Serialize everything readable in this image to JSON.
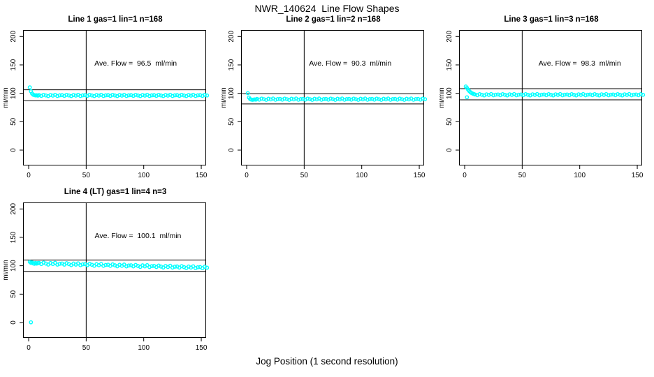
{
  "figure": {
    "title": "NWR_140624  Line Flow Shapes",
    "xlabel": "Jog Position (1 second resolution)",
    "point_color": "#00FFFF",
    "axis_color": "#000000",
    "background_color": "#FFFFFF"
  },
  "chart_data": [
    {
      "type": "scatter",
      "title": "Line 1 gas=1 lin=1 n=168",
      "ylabel": "ml/min",
      "annotation": "Ave. Flow =  96.5  ml/min",
      "avg_flow_ml_min": 96.5,
      "n": 168,
      "xticks": [
        0,
        50,
        100,
        150
      ],
      "yticks": [
        0,
        50,
        100,
        150,
        200
      ],
      "xlim": [
        -5,
        155
      ],
      "ylim": [
        -27,
        212
      ],
      "vline_x": 50,
      "hlines": [
        106.2,
        86.9
      ],
      "annotation_anchor": [
        93,
        149
      ],
      "points": [
        [
          1,
          110.5
        ],
        [
          2,
          103.5
        ],
        [
          3,
          99.5
        ],
        [
          4,
          97.5
        ],
        [
          5,
          96.8
        ],
        [
          6,
          96.3
        ],
        [
          7,
          96.6
        ],
        [
          8,
          95.9
        ],
        [
          9,
          96.7
        ],
        [
          11,
          95.5
        ],
        [
          13,
          97.3
        ],
        [
          15,
          96.2
        ],
        [
          17,
          95.1
        ],
        [
          19,
          97.0
        ],
        [
          21,
          95.9
        ],
        [
          23,
          97.4
        ],
        [
          25,
          95.3
        ],
        [
          27,
          96.4
        ],
        [
          29,
          96.7
        ],
        [
          31,
          95.5
        ],
        [
          33,
          97.3
        ],
        [
          35,
          96.2
        ],
        [
          37,
          95.1
        ],
        [
          39,
          97.0
        ],
        [
          41,
          95.9
        ],
        [
          43,
          97.4
        ],
        [
          45,
          95.3
        ],
        [
          47,
          96.4
        ],
        [
          49,
          96.7
        ],
        [
          51,
          95.5
        ],
        [
          53,
          97.3
        ],
        [
          55,
          96.2
        ],
        [
          57,
          95.1
        ],
        [
          59,
          97.0
        ],
        [
          61,
          95.9
        ],
        [
          63,
          97.4
        ],
        [
          65,
          95.3
        ],
        [
          67,
          96.4
        ],
        [
          69,
          96.7
        ],
        [
          71,
          95.5
        ],
        [
          73,
          97.3
        ],
        [
          75,
          96.2
        ],
        [
          77,
          95.1
        ],
        [
          79,
          97.0
        ],
        [
          81,
          95.9
        ],
        [
          83,
          97.4
        ],
        [
          85,
          95.3
        ],
        [
          87,
          96.4
        ],
        [
          89,
          96.7
        ],
        [
          91,
          95.5
        ],
        [
          93,
          97.3
        ],
        [
          95,
          96.2
        ],
        [
          97,
          95.1
        ],
        [
          99,
          97.0
        ],
        [
          101,
          95.9
        ],
        [
          103,
          97.4
        ],
        [
          105,
          95.3
        ],
        [
          107,
          96.4
        ],
        [
          109,
          96.7
        ],
        [
          111,
          95.5
        ],
        [
          113,
          97.3
        ],
        [
          115,
          96.2
        ],
        [
          117,
          95.1
        ],
        [
          119,
          97.0
        ],
        [
          121,
          95.9
        ],
        [
          123,
          97.4
        ],
        [
          125,
          95.3
        ],
        [
          127,
          96.4
        ],
        [
          129,
          96.7
        ],
        [
          131,
          95.5
        ],
        [
          133,
          97.3
        ],
        [
          135,
          96.2
        ],
        [
          137,
          95.1
        ],
        [
          139,
          97.0
        ],
        [
          141,
          95.9
        ],
        [
          143,
          97.4
        ],
        [
          145,
          95.3
        ],
        [
          147,
          96.4
        ],
        [
          149,
          96.7
        ],
        [
          151,
          95.5
        ],
        [
          153,
          97.3
        ],
        [
          155,
          96.2
        ]
      ]
    },
    {
      "type": "scatter",
      "title": "Line 2 gas=1 lin=2 n=168",
      "ylabel": "ml/min",
      "annotation": "Ave. Flow =  90.3  ml/min",
      "avg_flow_ml_min": 90.3,
      "n": 168,
      "xticks": [
        0,
        50,
        100,
        150
      ],
      "yticks": [
        0,
        50,
        100,
        150,
        200
      ],
      "xlim": [
        -5,
        155
      ],
      "ylim": [
        -27,
        212
      ],
      "vline_x": 50,
      "hlines": [
        99.3,
        81.3
      ],
      "annotation_anchor": [
        90,
        149
      ],
      "points": [
        [
          1,
          100.2
        ],
        [
          2,
          92.5
        ],
        [
          3,
          90.0
        ],
        [
          4,
          89.0
        ],
        [
          5,
          88.6
        ],
        [
          6,
          88.9
        ],
        [
          7,
          89.3
        ],
        [
          8,
          88.8
        ],
        [
          9,
          90.1
        ],
        [
          11,
          88.9
        ],
        [
          13,
          90.7
        ],
        [
          15,
          89.6
        ],
        [
          17,
          88.5
        ],
        [
          19,
          90.4
        ],
        [
          21,
          89.3
        ],
        [
          23,
          90.8
        ],
        [
          25,
          88.7
        ],
        [
          27,
          89.8
        ],
        [
          29,
          90.1
        ],
        [
          31,
          88.9
        ],
        [
          33,
          90.7
        ],
        [
          35,
          89.6
        ],
        [
          37,
          88.5
        ],
        [
          39,
          90.4
        ],
        [
          41,
          89.3
        ],
        [
          43,
          90.8
        ],
        [
          45,
          88.7
        ],
        [
          47,
          89.8
        ],
        [
          49,
          90.1
        ],
        [
          51,
          88.9
        ],
        [
          53,
          90.7
        ],
        [
          55,
          89.6
        ],
        [
          57,
          88.5
        ],
        [
          59,
          90.4
        ],
        [
          61,
          89.3
        ],
        [
          63,
          90.8
        ],
        [
          65,
          88.7
        ],
        [
          67,
          89.8
        ],
        [
          69,
          90.1
        ],
        [
          71,
          88.9
        ],
        [
          73,
          90.7
        ],
        [
          75,
          89.6
        ],
        [
          77,
          88.5
        ],
        [
          79,
          90.4
        ],
        [
          81,
          89.3
        ],
        [
          83,
          90.8
        ],
        [
          85,
          88.7
        ],
        [
          87,
          89.8
        ],
        [
          89,
          90.1
        ],
        [
          91,
          88.9
        ],
        [
          93,
          90.7
        ],
        [
          95,
          89.6
        ],
        [
          97,
          88.5
        ],
        [
          99,
          90.4
        ],
        [
          101,
          89.3
        ],
        [
          103,
          90.8
        ],
        [
          105,
          88.7
        ],
        [
          107,
          89.8
        ],
        [
          109,
          90.1
        ],
        [
          111,
          88.9
        ],
        [
          113,
          90.7
        ],
        [
          115,
          89.6
        ],
        [
          117,
          88.5
        ],
        [
          119,
          90.4
        ],
        [
          121,
          89.3
        ],
        [
          123,
          90.8
        ],
        [
          125,
          88.7
        ],
        [
          127,
          89.8
        ],
        [
          129,
          90.1
        ],
        [
          131,
          88.9
        ],
        [
          133,
          90.7
        ],
        [
          135,
          89.6
        ],
        [
          137,
          88.5
        ],
        [
          139,
          90.4
        ],
        [
          141,
          89.3
        ],
        [
          143,
          90.8
        ],
        [
          145,
          88.7
        ],
        [
          147,
          89.8
        ],
        [
          149,
          90.1
        ],
        [
          151,
          88.9
        ],
        [
          153,
          90.7
        ],
        [
          155,
          89.6
        ]
      ]
    },
    {
      "type": "scatter",
      "title": "Line 3 gas=1 lin=3 n=168",
      "ylabel": "ml/min",
      "annotation": "Ave. Flow =  98.3  ml/min",
      "avg_flow_ml_min": 98.3,
      "n": 168,
      "xticks": [
        0,
        50,
        100,
        150
      ],
      "yticks": [
        0,
        50,
        100,
        150,
        200
      ],
      "xlim": [
        -5,
        155
      ],
      "ylim": [
        -27,
        212
      ],
      "vline_x": 50,
      "hlines": [
        108.1,
        88.5
      ],
      "annotation_anchor": [
        100,
        149
      ],
      "points": [
        [
          1,
          112.0
        ],
        [
          2,
          109.5
        ],
        [
          2,
          93.0
        ],
        [
          3,
          106.5
        ],
        [
          4,
          104.0
        ],
        [
          5,
          102.0
        ],
        [
          6,
          100.5
        ],
        [
          7,
          99.5
        ],
        [
          8,
          98.7
        ],
        [
          9,
          97.9
        ],
        [
          11,
          96.7
        ],
        [
          13,
          98.5
        ],
        [
          15,
          97.4
        ],
        [
          17,
          96.3
        ],
        [
          19,
          98.2
        ],
        [
          21,
          97.1
        ],
        [
          23,
          98.6
        ],
        [
          25,
          96.5
        ],
        [
          27,
          97.6
        ],
        [
          29,
          97.9
        ],
        [
          31,
          96.7
        ],
        [
          33,
          98.5
        ],
        [
          35,
          97.4
        ],
        [
          37,
          96.3
        ],
        [
          39,
          98.2
        ],
        [
          41,
          97.1
        ],
        [
          43,
          98.6
        ],
        [
          45,
          96.5
        ],
        [
          47,
          97.6
        ],
        [
          49,
          97.9
        ],
        [
          51,
          96.7
        ],
        [
          53,
          98.5
        ],
        [
          55,
          97.4
        ],
        [
          57,
          96.3
        ],
        [
          59,
          98.2
        ],
        [
          61,
          97.1
        ],
        [
          63,
          98.6
        ],
        [
          65,
          96.5
        ],
        [
          67,
          97.6
        ],
        [
          69,
          97.9
        ],
        [
          71,
          96.7
        ],
        [
          73,
          98.5
        ],
        [
          75,
          97.4
        ],
        [
          77,
          96.3
        ],
        [
          79,
          98.2
        ],
        [
          81,
          97.1
        ],
        [
          83,
          98.6
        ],
        [
          85,
          96.5
        ],
        [
          87,
          97.6
        ],
        [
          89,
          97.9
        ],
        [
          91,
          96.7
        ],
        [
          93,
          98.5
        ],
        [
          95,
          97.4
        ],
        [
          97,
          96.3
        ],
        [
          99,
          98.2
        ],
        [
          101,
          97.1
        ],
        [
          103,
          98.6
        ],
        [
          105,
          96.5
        ],
        [
          107,
          97.6
        ],
        [
          109,
          97.9
        ],
        [
          111,
          96.7
        ],
        [
          113,
          98.5
        ],
        [
          115,
          97.4
        ],
        [
          117,
          96.3
        ],
        [
          119,
          98.2
        ],
        [
          121,
          97.1
        ],
        [
          123,
          98.6
        ],
        [
          125,
          96.5
        ],
        [
          127,
          97.6
        ],
        [
          129,
          97.9
        ],
        [
          131,
          96.7
        ],
        [
          133,
          98.5
        ],
        [
          135,
          97.4
        ],
        [
          137,
          96.3
        ],
        [
          139,
          98.2
        ],
        [
          141,
          97.1
        ],
        [
          143,
          98.6
        ],
        [
          145,
          96.5
        ],
        [
          147,
          97.6
        ],
        [
          149,
          97.9
        ],
        [
          151,
          96.7
        ],
        [
          153,
          98.5
        ],
        [
          155,
          97.4
        ]
      ]
    },
    {
      "type": "scatter",
      "title": "Line 4 (LT) gas=1 lin=4 n=3",
      "ylabel": "ml/min",
      "annotation": "Ave. Flow =  100.1  ml/min",
      "avg_flow_ml_min": 100.1,
      "n": 3,
      "xticks": [
        0,
        50,
        100,
        150
      ],
      "yticks": [
        0,
        50,
        100,
        150,
        200
      ],
      "xlim": [
        -5,
        155
      ],
      "ylim": [
        -27,
        212
      ],
      "vline_x": 50,
      "hlines": [
        110.1,
        90.1
      ],
      "annotation_anchor": [
        95,
        149
      ],
      "points": [
        [
          1,
          106.8
        ],
        [
          2,
          105.2
        ],
        [
          2,
          0.4
        ],
        [
          3,
          105.9
        ],
        [
          4,
          104.1
        ],
        [
          5,
          103.4
        ],
        [
          6,
          104.9
        ],
        [
          7,
          103.8
        ],
        [
          8,
          104.6
        ],
        [
          9,
          104.9
        ],
        [
          11,
          103.0
        ],
        [
          13,
          105.5
        ],
        [
          15,
          103.8
        ],
        [
          17,
          102.1
        ],
        [
          19,
          104.8
        ],
        [
          21,
          103.0
        ],
        [
          23,
          105.2
        ],
        [
          25,
          102.0
        ],
        [
          27,
          103.5
        ],
        [
          29,
          103.9
        ],
        [
          31,
          102.0
        ],
        [
          33,
          104.5
        ],
        [
          35,
          102.8
        ],
        [
          37,
          101.1
        ],
        [
          39,
          103.8
        ],
        [
          41,
          102.0
        ],
        [
          43,
          104.2
        ],
        [
          45,
          101.0
        ],
        [
          47,
          102.5
        ],
        [
          49,
          102.9
        ],
        [
          51,
          100.9
        ],
        [
          53,
          103.4
        ],
        [
          55,
          101.7
        ],
        [
          57,
          100.0
        ],
        [
          59,
          102.7
        ],
        [
          61,
          100.9
        ],
        [
          63,
          103.1
        ],
        [
          65,
          99.9
        ],
        [
          67,
          101.4
        ],
        [
          69,
          101.8
        ],
        [
          71,
          99.9
        ],
        [
          73,
          102.4
        ],
        [
          75,
          100.7
        ],
        [
          77,
          99.0
        ],
        [
          79,
          101.7
        ],
        [
          81,
          99.9
        ],
        [
          83,
          102.1
        ],
        [
          85,
          98.9
        ],
        [
          87,
          100.4
        ],
        [
          89,
          100.8
        ],
        [
          91,
          98.9
        ],
        [
          93,
          101.4
        ],
        [
          95,
          99.7
        ],
        [
          97,
          98.0
        ],
        [
          99,
          100.7
        ],
        [
          101,
          98.8
        ],
        [
          103,
          101.0
        ],
        [
          105,
          97.8
        ],
        [
          107,
          99.3
        ],
        [
          109,
          99.7
        ],
        [
          111,
          97.8
        ],
        [
          113,
          100.3
        ],
        [
          115,
          98.6
        ],
        [
          117,
          96.9
        ],
        [
          119,
          99.6
        ],
        [
          121,
          97.8
        ],
        [
          123,
          100.0
        ],
        [
          125,
          96.8
        ],
        [
          127,
          98.3
        ],
        [
          129,
          98.7
        ],
        [
          131,
          96.8
        ],
        [
          133,
          99.3
        ],
        [
          135,
          97.6
        ],
        [
          137,
          95.9
        ],
        [
          139,
          98.6
        ],
        [
          141,
          96.8
        ],
        [
          143,
          99.0
        ],
        [
          145,
          95.8
        ],
        [
          147,
          97.3
        ],
        [
          149,
          97.7
        ],
        [
          151,
          95.8
        ],
        [
          153,
          98.3
        ],
        [
          155,
          96.6
        ]
      ]
    }
  ]
}
